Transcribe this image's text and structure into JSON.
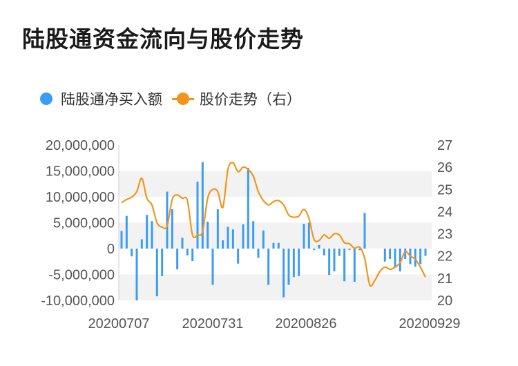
{
  "title": "陆股通资金流向与股价走势",
  "legend": {
    "bars_label": "陆股通净买入额",
    "line_label": "股价走势（右）"
  },
  "colors": {
    "bars": "#3b9cf5",
    "line": "#f39518",
    "band": "#f2f2f2"
  },
  "chart_data": {
    "type": "bar",
    "title": "陆股通资金流向与股价走势",
    "y_left": {
      "lim": [
        -10000000,
        20000000
      ],
      "ticks": [
        "20,000,000",
        "15,000,000",
        "10,000,000",
        "5,000,000",
        "0",
        "-5,000,000",
        "-10,000,000"
      ]
    },
    "y_right": {
      "lim": [
        20,
        27
      ],
      "ticks": [
        "27",
        "26",
        "25",
        "24",
        "23",
        "22",
        "21",
        "20"
      ]
    },
    "x_ticks": [
      "20200707",
      "20200731",
      "20200826",
      "20200929"
    ],
    "series": [
      {
        "name": "陆股通净买入额",
        "type": "bar",
        "values": [
          3400000,
          6300000,
          -1500000,
          -10000000,
          1800000,
          6500000,
          5300000,
          -9200000,
          -5300000,
          11000000,
          7600000,
          -4000000,
          2100000,
          -1300000,
          -2400000,
          12900000,
          16700000,
          5200000,
          -7000000,
          7600000,
          1600000,
          4200000,
          3700000,
          -2900000,
          4700000,
          15600000,
          5300000,
          -1800000,
          3500000,
          -7000000,
          1100000,
          1100000,
          -9400000,
          -7000000,
          -5500000,
          -5300000,
          4800000,
          5000000,
          -300000,
          700000,
          -1300000,
          -5100000,
          -4400000,
          -1400000,
          -6300000,
          -300000,
          -6400000,
          -300000,
          6900000,
          0,
          0,
          0,
          -2500000,
          -2000000,
          -3700000,
          -4400000,
          -2000000,
          -3000000,
          -3500000,
          -3000000,
          -1400000
        ]
      },
      {
        "name": "股价走势（右）",
        "type": "line",
        "values": [
          24.4,
          24.55,
          24.65,
          24.9,
          25.5,
          24.6,
          24.3,
          23.5,
          23.3,
          23.35,
          24.55,
          24.75,
          24.6,
          24.5,
          22.95,
          22.95,
          23.1,
          24.6,
          25.0,
          24.9,
          24.2,
          25.9,
          26.2,
          25.8,
          26.0,
          25.9,
          25.6,
          24.9,
          24.5,
          24.3,
          24.45,
          24.5,
          24.3,
          23.85,
          23.75,
          23.8,
          24.1,
          23.7,
          22.75,
          22.7,
          22.95,
          22.8,
          23.0,
          22.95,
          22.6,
          22.55,
          22.35,
          22.4,
          21.9,
          20.7,
          20.9,
          21.3,
          21.5,
          21.4,
          21.5,
          21.7,
          22.2,
          22.0,
          21.85,
          21.5,
          21.05
        ]
      }
    ]
  }
}
